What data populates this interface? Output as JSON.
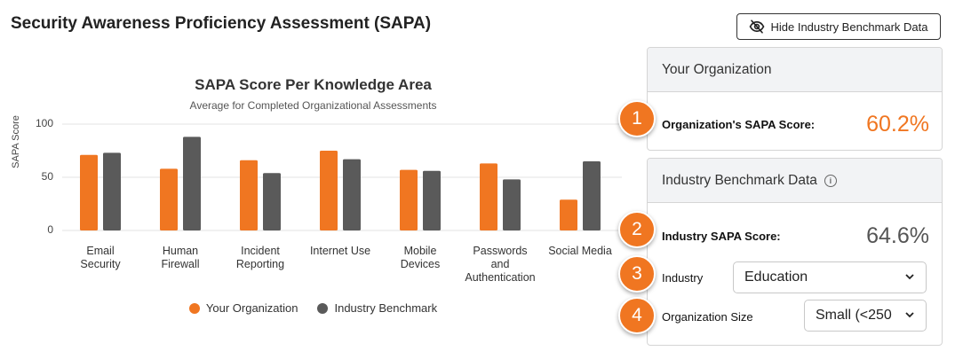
{
  "page": {
    "title": "Security Awareness Proficiency Assessment (SAPA)",
    "hide_button_label": "Hide Industry Benchmark Data",
    "hide_icon": "eye-slash-icon"
  },
  "org_card": {
    "heading": "Your Organization",
    "score_label": "Organization's SAPA Score:",
    "score_value": "60.2%"
  },
  "industry_card": {
    "heading": "Industry Benchmark Data",
    "info_icon": "info-icon",
    "score_label": "Industry SAPA Score:",
    "score_value": "64.6%",
    "industry_label": "Industry",
    "industry_value": "Education",
    "size_label": "Organization Size",
    "size_value": "Small (<250"
  },
  "badges": [
    "1",
    "2",
    "3",
    "4"
  ],
  "colors": {
    "org": "#f07621",
    "benchmark": "#5a5a5a",
    "accent": "#f07621"
  },
  "chart_data": {
    "type": "bar",
    "title": "SAPA Score Per Knowledge Area",
    "subtitle": "Average for Completed Organizational Assessments",
    "ylabel": "SAPA Score",
    "xlabel": "",
    "ylim": [
      0,
      100
    ],
    "yticks": [
      "0",
      "50",
      "100"
    ],
    "grid": true,
    "legend_position": "bottom",
    "categories": [
      [
        "Email",
        "Security"
      ],
      [
        "Human",
        "Firewall"
      ],
      [
        "Incident",
        "Reporting"
      ],
      [
        "Internet Use"
      ],
      [
        "Mobile",
        "Devices"
      ],
      [
        "Passwords",
        "and",
        "Authentication"
      ],
      [
        "Social Media"
      ]
    ],
    "series": [
      {
        "name": "Your Organization",
        "values": [
          71,
          58,
          66,
          75,
          57,
          63,
          29
        ]
      },
      {
        "name": "Industry Benchmark",
        "values": [
          73,
          88,
          54,
          67,
          56,
          48,
          65
        ]
      }
    ]
  }
}
